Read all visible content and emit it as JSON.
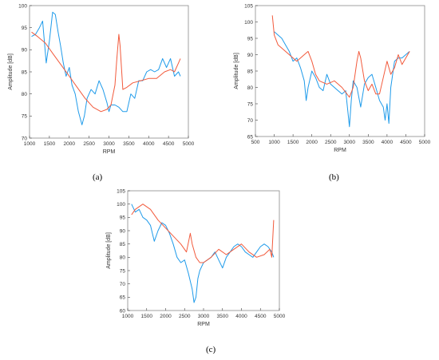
{
  "colors": {
    "measured": "#1f9bea",
    "fitted": "#f25a3c",
    "axis": "#444444"
  },
  "panel_labels": {
    "a": "(a)",
    "b": "(b)",
    "c": "(c)"
  },
  "chart_data": [
    {
      "type": "line",
      "xlabel": "RPM",
      "ylabel": "Amplitude [dB]",
      "xlim": [
        1000,
        5000
      ],
      "ylim": [
        70,
        100
      ],
      "xticks": [
        1000,
        1500,
        2000,
        2500,
        3000,
        3500,
        4000,
        4500,
        5000
      ],
      "yticks": [
        70,
        75,
        80,
        85,
        90,
        95,
        100
      ],
      "grid": false,
      "series": [
        {
          "color": "#1f9bea",
          "x": [
            1050,
            1150,
            1250,
            1330,
            1420,
            1500,
            1580,
            1650,
            1720,
            1780,
            1850,
            1920,
            2000,
            2070,
            2150,
            2230,
            2320,
            2380,
            2450,
            2550,
            2650,
            2750,
            2850,
            2950,
            3000,
            3050,
            3150,
            3250,
            3350,
            3450,
            3550,
            3650,
            3750,
            3850,
            3950,
            4050,
            4150,
            4250,
            4350,
            4450,
            4550,
            4650,
            4750,
            4800
          ],
          "y": [
            93,
            93.5,
            95,
            96.5,
            87,
            92,
            98.5,
            98,
            94,
            91,
            87,
            84,
            86,
            82,
            80,
            76,
            73,
            75,
            79,
            81,
            80,
            83,
            81,
            78,
            76,
            77.5,
            77.5,
            77,
            76,
            76,
            80,
            79,
            83,
            83,
            85,
            85.5,
            85,
            85.5,
            88,
            86,
            88,
            84,
            85,
            84
          ]
        },
        {
          "color": "#f25a3c",
          "x": [
            1050,
            1200,
            1400,
            1600,
            1800,
            2000,
            2200,
            2400,
            2600,
            2800,
            2950,
            3050,
            3150,
            3200,
            3250,
            3280,
            3350,
            3450,
            3600,
            3800,
            4000,
            4200,
            4400,
            4550,
            4650,
            4750,
            4800
          ],
          "y": [
            94,
            93,
            91.5,
            89,
            86.5,
            84,
            81.5,
            79,
            77,
            76,
            76.5,
            77.5,
            82,
            88,
            93.5,
            91,
            81,
            81.5,
            82.5,
            83,
            83.5,
            83.5,
            85,
            85.5,
            85,
            87,
            88
          ]
        }
      ]
    },
    {
      "type": "line",
      "xlabel": "RPM",
      "ylabel": "Amplitude [dB]",
      "xlim": [
        500,
        5000
      ],
      "ylim": [
        65,
        105
      ],
      "xticks": [
        500,
        1000,
        1500,
        2000,
        2500,
        3000,
        3500,
        4000,
        4500,
        5000
      ],
      "yticks": [
        65,
        70,
        75,
        80,
        85,
        90,
        95,
        100,
        105
      ],
      "grid": false,
      "series": [
        {
          "color": "#1f9bea",
          "x": [
            1000,
            1100,
            1200,
            1300,
            1400,
            1500,
            1600,
            1700,
            1800,
            1850,
            1900,
            2000,
            2100,
            2200,
            2300,
            2400,
            2500,
            2600,
            2700,
            2800,
            2900,
            3000,
            3050,
            3100,
            3200,
            3300,
            3400,
            3500,
            3600,
            3700,
            3800,
            3900,
            3950,
            4000,
            4050,
            4100,
            4200,
            4300,
            4400,
            4500,
            4600
          ],
          "y": [
            97,
            96,
            95,
            93,
            91,
            88,
            89,
            86,
            82,
            76,
            80,
            85,
            83,
            80,
            79,
            84,
            81,
            80,
            79,
            78,
            79,
            68,
            76,
            82,
            80,
            74,
            81,
            83,
            84,
            80,
            76,
            74,
            70,
            75,
            69,
            80,
            88,
            89,
            89,
            90,
            91
          ]
        },
        {
          "color": "#f25a3c",
          "x": [
            950,
            1000,
            1100,
            1200,
            1400,
            1600,
            1800,
            1900,
            2000,
            2100,
            2200,
            2400,
            2600,
            2800,
            3000,
            3100,
            3200,
            3250,
            3300,
            3400,
            3500,
            3600,
            3700,
            3800,
            3900,
            4000,
            4100,
            4200,
            4300,
            4400,
            4500,
            4600
          ],
          "y": [
            102,
            96,
            93,
            92,
            90,
            88,
            90,
            91,
            88,
            84,
            82,
            81,
            82,
            80,
            77,
            80,
            88,
            91,
            89,
            82,
            79,
            81,
            78,
            78,
            83,
            88,
            84,
            86,
            90,
            87,
            89,
            91
          ]
        }
      ]
    },
    {
      "type": "line",
      "xlabel": "RPM",
      "ylabel": "Amplitude [dB]",
      "xlim": [
        1000,
        5000
      ],
      "ylim": [
        60,
        105
      ],
      "xticks": [
        1000,
        1500,
        2000,
        2500,
        3000,
        3500,
        4000,
        4500,
        5000
      ],
      "yticks": [
        60,
        65,
        70,
        75,
        80,
        85,
        90,
        95,
        100,
        105
      ],
      "grid": false,
      "series": [
        {
          "color": "#1f9bea",
          "x": [
            1100,
            1200,
            1300,
            1400,
            1500,
            1600,
            1700,
            1800,
            1900,
            2000,
            2100,
            2200,
            2300,
            2400,
            2500,
            2600,
            2700,
            2750,
            2800,
            2850,
            2900,
            3000,
            3100,
            3200,
            3300,
            3400,
            3500,
            3600,
            3700,
            3800,
            3900,
            4000,
            4100,
            4200,
            4300,
            4400,
            4500,
            4600,
            4700,
            4800,
            4850
          ],
          "y": [
            100,
            97,
            98,
            95,
            94,
            92,
            86,
            90,
            93,
            92,
            89,
            85,
            80,
            78,
            79,
            74,
            68,
            63,
            65,
            72,
            75,
            78,
            79,
            80,
            82,
            79,
            76,
            80,
            82,
            84,
            85,
            84,
            82,
            81,
            80,
            82,
            84,
            85,
            84,
            82,
            80
          ]
        },
        {
          "color": "#f25a3c",
          "x": [
            1100,
            1200,
            1400,
            1600,
            1800,
            2000,
            2200,
            2400,
            2550,
            2650,
            2700,
            2800,
            2900,
            3000,
            3200,
            3400,
            3600,
            3800,
            4000,
            4200,
            4400,
            4600,
            4750,
            4800,
            4850
          ],
          "y": [
            96,
            98,
            100,
            98,
            94,
            91,
            88,
            85,
            82,
            89,
            85,
            80,
            78,
            78,
            80,
            83,
            81,
            83,
            85,
            82,
            80,
            81,
            83,
            80,
            94
          ]
        }
      ]
    }
  ]
}
